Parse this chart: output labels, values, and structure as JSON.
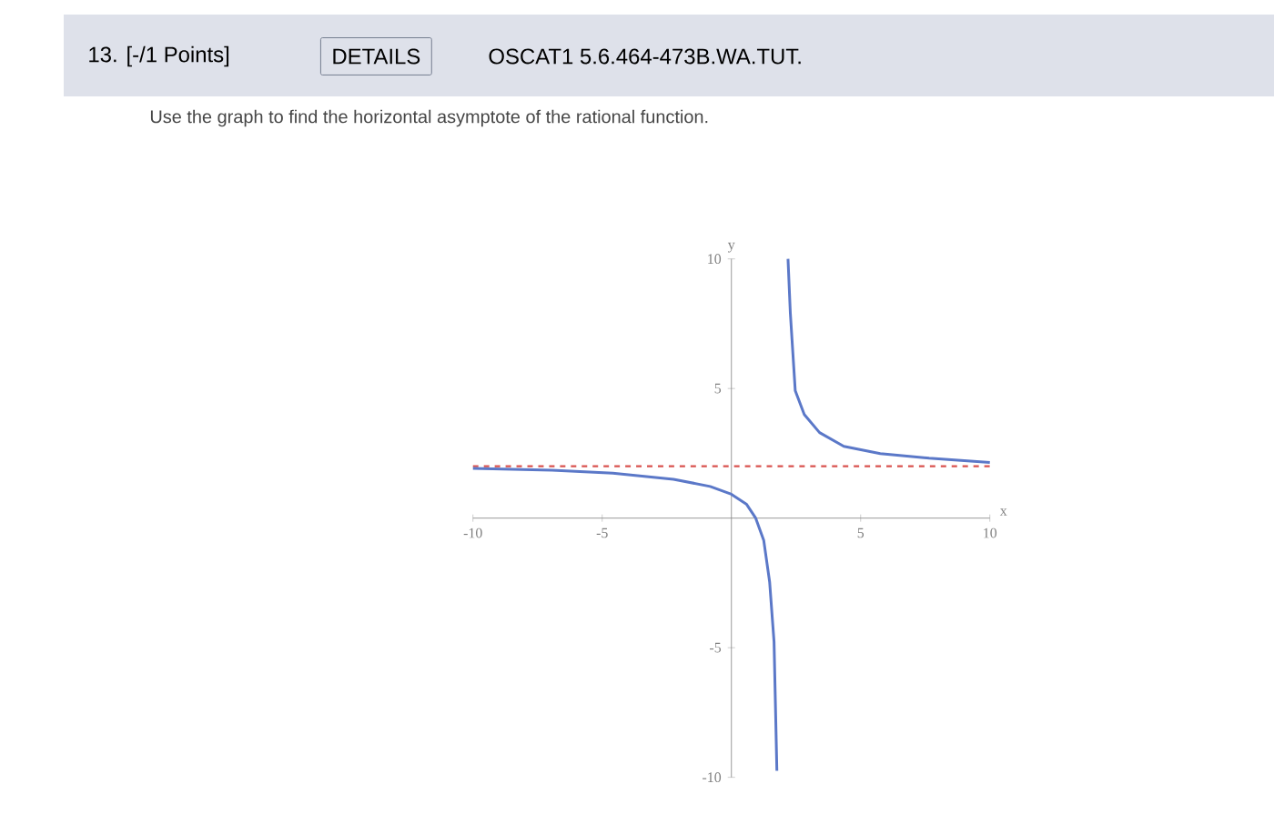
{
  "chart_data": {
    "type": "line",
    "subtitle": "Use the graph to find the horizontal asymptote of the rational function.",
    "annotations": [
      "13. [-/1 Points]",
      "DETAILS",
      "OSCAT1 5.6.464-473B.WA.TUT."
    ],
    "xlabel": "x",
    "ylabel": "y",
    "xlim": [
      -10,
      10
    ],
    "ylim": [
      -10,
      10
    ],
    "xticks": [
      -10,
      -5,
      5,
      10
    ],
    "yticks": [
      -10,
      -5,
      5,
      10
    ],
    "series": [
      {
        "color": "#5b78c8",
        "x": [
          -10,
          -6.94,
          -4.59,
          -2.24,
          -0.82,
          0,
          0.59,
          0.94,
          1.25,
          1.48,
          1.65,
          1.76
        ],
        "values": [
          1.92,
          1.85,
          1.73,
          1.5,
          1.22,
          0.92,
          0.53,
          0,
          -0.85,
          -2.47,
          -4.78,
          -9.75
        ]
      },
      {
        "color": "#5b78c8",
        "x": [
          2.19,
          2.28,
          2.47,
          2.82,
          3.41,
          4.35,
          5.76,
          7.65,
          10
        ],
        "values": [
          10,
          7.92,
          4.92,
          4.0,
          3.3,
          2.77,
          2.49,
          2.31,
          2.15
        ]
      }
    ],
    "ref_lines": [
      {
        "axis": "y",
        "value": 2,
        "color": "#d9534f",
        "line_style": "dashed"
      }
    ]
  }
}
